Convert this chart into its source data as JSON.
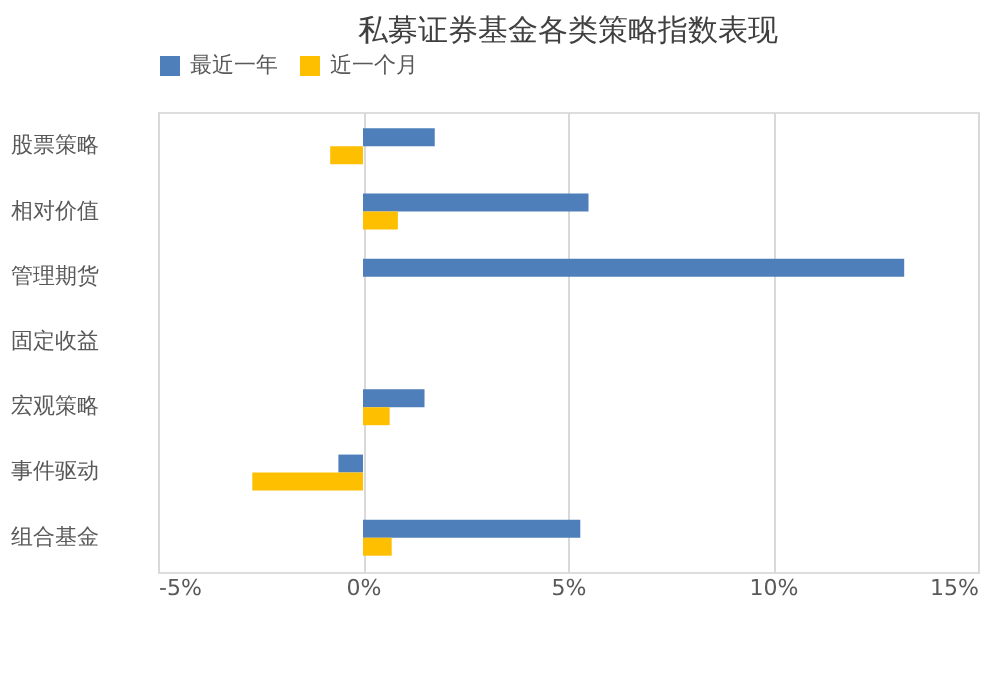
{
  "chart_data": {
    "type": "bar",
    "orientation": "horizontal",
    "title": "私募证券基金各类策略指数表现",
    "categories": [
      "股票策略",
      "相对价值",
      "管理期货",
      "固定收益",
      "宏观策略",
      "事件驱动",
      "组合基金"
    ],
    "series": [
      {
        "name": "最近一年",
        "color": "#4e7fbb",
        "values": [
          1.75,
          5.5,
          13.2,
          null,
          1.5,
          -0.6,
          5.3
        ]
      },
      {
        "name": "近一个月",
        "color": "#fdbf00",
        "values": [
          -0.8,
          0.85,
          null,
          null,
          0.65,
          -2.7,
          0.7
        ]
      }
    ],
    "xlim": [
      -5,
      15
    ],
    "xticks": [
      {
        "value": -5,
        "label": "-5%"
      },
      {
        "value": 0,
        "label": "0%"
      },
      {
        "value": 5,
        "label": "5%"
      },
      {
        "value": 10,
        "label": "10%"
      },
      {
        "value": 15,
        "label": "15%"
      }
    ],
    "grid": "x",
    "legend": "top"
  }
}
